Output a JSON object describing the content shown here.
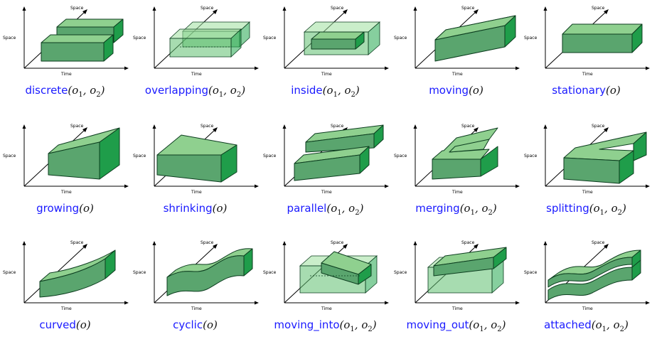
{
  "axis_labels": {
    "space_top": "Space",
    "space_left": "Space",
    "time": "Time"
  },
  "cells": [
    {
      "name": "discrete",
      "args": [
        "o1",
        "o2"
      ]
    },
    {
      "name": "overlapping",
      "args": [
        "o1",
        "o2"
      ]
    },
    {
      "name": "inside",
      "args": [
        "o1",
        "o2"
      ]
    },
    {
      "name": "moving",
      "args": [
        "o"
      ]
    },
    {
      "name": "stationary",
      "args": [
        "o"
      ]
    },
    {
      "name": "growing",
      "args": [
        "o"
      ]
    },
    {
      "name": "shrinking",
      "args": [
        "o"
      ]
    },
    {
      "name": "parallel",
      "args": [
        "o1",
        "o2"
      ]
    },
    {
      "name": "merging",
      "args": [
        "o1",
        "o2"
      ]
    },
    {
      "name": "splitting",
      "args": [
        "o1",
        "o2"
      ]
    },
    {
      "name": "curved",
      "args": [
        "o"
      ]
    },
    {
      "name": "cyclic",
      "args": [
        "o"
      ]
    },
    {
      "name": "moving_into",
      "args": [
        "o1",
        "o2"
      ]
    },
    {
      "name": "moving_out",
      "args": [
        "o1",
        "o2"
      ]
    },
    {
      "name": "attached",
      "args": [
        "o1",
        "o2"
      ]
    }
  ],
  "colors": {
    "front": "#5aa56e",
    "top": "#8fd08f",
    "side": "#1f9d4a",
    "label": "#1a1aff"
  }
}
